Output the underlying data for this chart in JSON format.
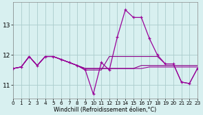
{
  "x": [
    0,
    1,
    2,
    3,
    4,
    5,
    6,
    7,
    8,
    9,
    10,
    11,
    12,
    13,
    14,
    15,
    16,
    17,
    18,
    19,
    20,
    21,
    22,
    23
  ],
  "line_spiky": [
    11.55,
    11.6,
    11.95,
    11.65,
    11.95,
    11.95,
    11.85,
    11.75,
    11.65,
    11.5,
    10.7,
    11.75,
    11.5,
    12.6,
    13.5,
    13.25,
    13.25,
    12.55,
    12.0,
    11.7,
    11.7,
    11.1,
    11.05,
    11.55
  ],
  "line_flat1": [
    11.55,
    11.6,
    11.95,
    11.65,
    11.95,
    11.95,
    11.85,
    11.75,
    11.65,
    11.55,
    11.55,
    11.55,
    11.55,
    11.55,
    11.55,
    11.55,
    11.55,
    11.6,
    11.6,
    11.6,
    11.6,
    11.6,
    11.6,
    11.6
  ],
  "line_upper": [
    11.55,
    11.6,
    11.95,
    11.65,
    11.95,
    11.95,
    11.85,
    11.75,
    11.65,
    11.5,
    11.5,
    11.5,
    11.95,
    11.95,
    11.95,
    11.95,
    11.95,
    11.95,
    11.95,
    11.7,
    11.7,
    11.1,
    11.05,
    11.55
  ],
  "line_step": [
    11.55,
    11.6,
    11.95,
    11.65,
    11.95,
    11.95,
    11.85,
    11.75,
    11.65,
    11.55,
    11.55,
    11.55,
    11.55,
    11.55,
    11.55,
    11.55,
    11.65,
    11.65,
    11.65,
    11.65,
    11.65,
    11.65,
    11.65,
    11.65
  ],
  "xticks": [
    0,
    1,
    2,
    3,
    4,
    5,
    6,
    7,
    8,
    9,
    10,
    11,
    12,
    13,
    14,
    15,
    16,
    17,
    18,
    19,
    20,
    21,
    22,
    23
  ],
  "yticks": [
    11,
    12,
    13
  ],
  "ylim": [
    10.55,
    13.75
  ],
  "xlim": [
    0,
    23
  ],
  "xlabel": "Windchill (Refroidissement éolien,°C)",
  "bg_color": "#d8f0f0",
  "line_color1": "#990099",
  "line_color2": "#880088",
  "grid_color": "#aacccc"
}
